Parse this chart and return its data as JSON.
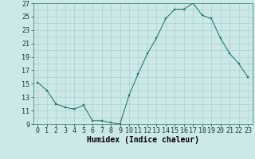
{
  "x": [
    0,
    1,
    2,
    3,
    4,
    5,
    6,
    7,
    8,
    9,
    10,
    11,
    12,
    13,
    14,
    15,
    16,
    17,
    18,
    19,
    20,
    21,
    22,
    23
  ],
  "y": [
    15.2,
    14.0,
    12.0,
    11.5,
    11.2,
    11.8,
    9.5,
    9.5,
    9.2,
    9.0,
    13.3,
    16.5,
    19.5,
    21.8,
    24.7,
    26.1,
    26.1,
    27.0,
    25.2,
    24.7,
    21.8,
    19.5,
    18.0,
    16.0
  ],
  "ylim": [
    9,
    27
  ],
  "yticks": [
    9,
    11,
    13,
    15,
    17,
    19,
    21,
    23,
    25,
    27
  ],
  "xticks": [
    0,
    1,
    2,
    3,
    4,
    5,
    6,
    7,
    8,
    9,
    10,
    11,
    12,
    13,
    14,
    15,
    16,
    17,
    18,
    19,
    20,
    21,
    22,
    23
  ],
  "xlabel": "Humidex (Indice chaleur)",
  "line_color": "#2d7a6e",
  "marker_color": "#2d7a6e",
  "bg_color": "#cce8e8",
  "grid_color": "#aad0d0",
  "xlabel_fontsize": 7,
  "tick_fontsize": 6,
  "figsize": [
    3.2,
    2.0
  ],
  "dpi": 100
}
